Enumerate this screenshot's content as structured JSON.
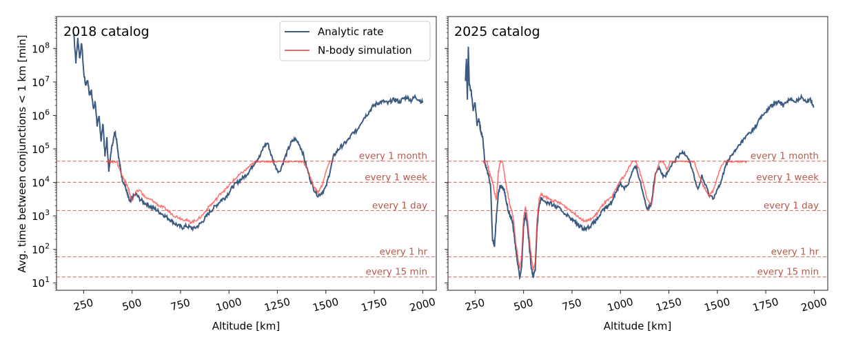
{
  "chart_data": [
    {
      "type": "line",
      "panel_title": "2018 catalog",
      "xlabel": "Altitude [km]",
      "ylabel": "Avg. time between conjunctions < 1 km [min]",
      "xlim": [
        110,
        2070
      ],
      "ylim": [
        6,
        900000000
      ],
      "yscale": "log",
      "grid": false,
      "x_ticks": [
        250,
        500,
        750,
        1000,
        1250,
        1500,
        1750,
        2000
      ],
      "x_tick_labels": [
        "250",
        "500",
        "750",
        "1000",
        "1250",
        "1500",
        "1750",
        "2000"
      ],
      "y_ticks": [
        10,
        100,
        1000,
        10000,
        100000,
        1000000,
        10000000,
        100000000
      ],
      "y_tick_labels": [
        [
          "10",
          "1"
        ],
        [
          "10",
          "2"
        ],
        [
          "10",
          "3"
        ],
        [
          "10",
          "4"
        ],
        [
          "10",
          "5"
        ],
        [
          "10",
          "6"
        ],
        [
          "10",
          "7"
        ],
        [
          "10",
          "8"
        ]
      ],
      "legend": {
        "placement": "top-right",
        "entries": [
          "Analytic rate",
          "N-body simulation"
        ]
      },
      "reference_lines": [
        {
          "label": "every 1 month",
          "value": 43200
        },
        {
          "label": "every 1 week",
          "value": 10080
        },
        {
          "label": "every 1 day",
          "value": 1440
        },
        {
          "label": "every 1 hr",
          "value": 60
        },
        {
          "label": "every 15 min",
          "value": 15
        }
      ],
      "series": [
        {
          "name": "Analytic rate",
          "color": "#3a5a80",
          "x": [
            200,
            210,
            220,
            230,
            240,
            250,
            260,
            270,
            280,
            290,
            300,
            310,
            320,
            330,
            340,
            350,
            360,
            370,
            380,
            390,
            400,
            410,
            420,
            430,
            440,
            450,
            460,
            470,
            480,
            490,
            500,
            520,
            540,
            560,
            580,
            600,
            620,
            640,
            660,
            680,
            700,
            720,
            740,
            760,
            780,
            800,
            820,
            840,
            860,
            880,
            900,
            920,
            940,
            960,
            980,
            1000,
            1020,
            1040,
            1060,
            1080,
            1100,
            1120,
            1140,
            1160,
            1180,
            1200,
            1220,
            1240,
            1260,
            1280,
            1300,
            1320,
            1340,
            1360,
            1380,
            1400,
            1420,
            1440,
            1460,
            1480,
            1500,
            1520,
            1540,
            1560,
            1580,
            1600,
            1620,
            1640,
            1660,
            1680,
            1700,
            1720,
            1740,
            1760,
            1780,
            1800,
            1820,
            1840,
            1860,
            1880,
            1900,
            1920,
            1940,
            1960,
            1980,
            2000
          ],
          "y": [
            250000000,
            40000000,
            200000000,
            50000000,
            150000000,
            20000000,
            8000000,
            12000000,
            4000000,
            6000000,
            1500000,
            2500000,
            500000,
            900000,
            180000,
            600000,
            60000,
            200000,
            20000,
            80000,
            150000,
            350000,
            200000,
            60000,
            25000,
            12000,
            9000,
            6000,
            3500,
            2500,
            3500,
            4500,
            3200,
            2500,
            2200,
            1800,
            1600,
            1300,
            1100,
            900,
            750,
            600,
            500,
            450,
            500,
            450,
            420,
            500,
            650,
            900,
            1300,
            1700,
            2200,
            3000,
            3500,
            5000,
            7500,
            9500,
            12000,
            15000,
            20000,
            30000,
            45000,
            60000,
            120000,
            150000,
            60000,
            30000,
            20000,
            40000,
            80000,
            150000,
            200000,
            150000,
            80000,
            30000,
            12000,
            6000,
            4000,
            5000,
            7000,
            20000,
            60000,
            90000,
            120000,
            150000,
            200000,
            300000,
            350000,
            600000,
            900000,
            1200000,
            1800000,
            2200000,
            2500000,
            2600000,
            2300000,
            2800000,
            3000000,
            2500000,
            3200000,
            3500000,
            2800000,
            3600000,
            3000000,
            2400000
          ]
        },
        {
          "name": "N-body simulation",
          "color": "#ff4444",
          "x": [
            370,
            380,
            390,
            400,
            410,
            420,
            430,
            440,
            450,
            460,
            470,
            480,
            490,
            500,
            520,
            540,
            560,
            580,
            600,
            620,
            640,
            660,
            680,
            700,
            720,
            740,
            760,
            780,
            800,
            820,
            840,
            860,
            880,
            900,
            920,
            940,
            960,
            980,
            1000,
            1020,
            1040,
            1060,
            1080,
            1100,
            1120,
            1140,
            1160,
            1180,
            1200,
            1220,
            1240,
            1260,
            1280,
            1300,
            1320,
            1340,
            1360,
            1380,
            1400,
            1420,
            1440,
            1460,
            1480,
            1500,
            1520,
            1540
          ],
          "y": [
            43200,
            43200,
            43200,
            43200,
            43200,
            43200,
            30000,
            20000,
            15000,
            12000,
            9000,
            7000,
            4000,
            3000,
            5000,
            6000,
            4000,
            3200,
            3000,
            2500,
            2000,
            1800,
            1500,
            1200,
            1000,
            900,
            800,
            750,
            650,
            700,
            800,
            1000,
            1400,
            2000,
            2500,
            3500,
            5000,
            6000,
            8000,
            11000,
            14000,
            18000,
            22000,
            28000,
            35000,
            43200,
            43200,
            43200,
            43200,
            43200,
            43200,
            43200,
            43200,
            43200,
            43200,
            43200,
            43200,
            43200,
            30000,
            14000,
            7000,
            5000,
            8000,
            20000,
            43200,
            43200
          ]
        }
      ]
    },
    {
      "type": "line",
      "panel_title": "2025 catalog",
      "xlabel": "Altitude [km]",
      "ylabel": "",
      "xlim": [
        110,
        2070
      ],
      "ylim": [
        6,
        900000000
      ],
      "yscale": "log",
      "grid": false,
      "x_ticks": [
        250,
        500,
        750,
        1000,
        1250,
        1500,
        1750,
        2000
      ],
      "x_tick_labels": [
        "250",
        "500",
        "750",
        "1000",
        "1250",
        "1500",
        "1750",
        "2000"
      ],
      "reference_lines": [
        {
          "label": "every 1 month",
          "value": 43200
        },
        {
          "label": "every 1 week",
          "value": 10080
        },
        {
          "label": "every 1 day",
          "value": 1440
        },
        {
          "label": "every 1 hr",
          "value": 60
        },
        {
          "label": "every 15 min",
          "value": 15
        }
      ],
      "series": [
        {
          "name": "Analytic rate",
          "color": "#3a5a80",
          "x": [
            200,
            205,
            210,
            215,
            220,
            230,
            240,
            250,
            260,
            270,
            280,
            290,
            300,
            310,
            320,
            330,
            340,
            350,
            360,
            370,
            380,
            390,
            400,
            410,
            420,
            430,
            440,
            450,
            460,
            470,
            480,
            490,
            500,
            510,
            520,
            530,
            540,
            550,
            560,
            570,
            580,
            590,
            600,
            620,
            640,
            660,
            680,
            700,
            720,
            740,
            760,
            780,
            800,
            820,
            840,
            860,
            880,
            900,
            920,
            940,
            960,
            980,
            1000,
            1020,
            1040,
            1060,
            1080,
            1100,
            1120,
            1140,
            1160,
            1180,
            1200,
            1220,
            1240,
            1260,
            1280,
            1300,
            1320,
            1340,
            1360,
            1380,
            1400,
            1420,
            1440,
            1460,
            1480,
            1500,
            1520,
            1540,
            1560,
            1580,
            1600,
            1620,
            1640,
            1660,
            1680,
            1700,
            1720,
            1740,
            1760,
            1780,
            1800,
            1820,
            1840,
            1860,
            1880,
            1900,
            1920,
            1940,
            1960,
            1980,
            2000
          ],
          "y": [
            10000000,
            50000000,
            3000000,
            100000000,
            8000000,
            5000000,
            1500000,
            2500000,
            500000,
            800000,
            300000,
            200000,
            43200,
            25000,
            15000,
            8000,
            200,
            130,
            1000,
            5000,
            8000,
            7000,
            6000,
            3000,
            1500,
            1000,
            800,
            300,
            100,
            40,
            15,
            30,
            500,
            1200,
            500,
            120,
            30,
            15,
            25,
            500,
            2000,
            3500,
            3000,
            2500,
            2300,
            2000,
            1700,
            1400,
            1100,
            900,
            700,
            550,
            450,
            420,
            480,
            600,
            800,
            1200,
            1700,
            2000,
            3000,
            6000,
            9000,
            7000,
            9000,
            20000,
            30000,
            12000,
            4000,
            1500,
            2500,
            20000,
            30000,
            15000,
            17000,
            30000,
            43200,
            60000,
            80000,
            70000,
            40000,
            15000,
            6000,
            15000,
            8000,
            4000,
            3500,
            6000,
            10000,
            30000,
            50000,
            70000,
            100000,
            150000,
            200000,
            280000,
            350000,
            500000,
            800000,
            1100000,
            1500000,
            2000000,
            2300000,
            2500000,
            2000000,
            2800000,
            3000000,
            2400000,
            3200000,
            3500000,
            2600000,
            3000000,
            1800000
          ]
        },
        {
          "name": "N-body simulation",
          "color": "#ff4444",
          "x": [
            290,
            300,
            310,
            320,
            330,
            340,
            350,
            360,
            370,
            380,
            390,
            400,
            410,
            420,
            430,
            440,
            450,
            460,
            470,
            480,
            490,
            500,
            510,
            520,
            530,
            540,
            550,
            560,
            570,
            580,
            590,
            600,
            620,
            640,
            660,
            680,
            700,
            720,
            740,
            760,
            780,
            800,
            820,
            840,
            860,
            880,
            900,
            920,
            940,
            960,
            980,
            1000,
            1020,
            1040,
            1060,
            1080,
            1100,
            1120,
            1140,
            1160,
            1180,
            1200,
            1220,
            1240,
            1260,
            1280,
            1300,
            1320,
            1340,
            1360,
            1380,
            1400,
            1420,
            1440,
            1460,
            1480,
            1500,
            1520,
            1540,
            1560,
            1580,
            1600,
            1620,
            1640,
            1650
          ],
          "y": [
            43200,
            43200,
            43200,
            25000,
            15000,
            10000,
            5000,
            3000,
            20000,
            43200,
            43200,
            20000,
            8000,
            4000,
            2000,
            1500,
            600,
            150,
            60,
            25,
            60,
            900,
            1800,
            800,
            200,
            60,
            25,
            40,
            800,
            3000,
            4500,
            4000,
            3500,
            3000,
            2800,
            2500,
            2200,
            1800,
            1500,
            1200,
            1000,
            800,
            700,
            750,
            900,
            1200,
            1800,
            2500,
            3000,
            4000,
            7000,
            12000,
            15000,
            25000,
            43200,
            43200,
            20000,
            8000,
            3000,
            2000,
            15000,
            43200,
            43200,
            25000,
            43200,
            43200,
            43200,
            43200,
            43200,
            43200,
            43200,
            20000,
            10000,
            6000,
            4000,
            6000,
            15000,
            30000,
            43200,
            43200,
            43200,
            43200,
            43200,
            43200,
            43200
          ]
        }
      ]
    }
  ]
}
